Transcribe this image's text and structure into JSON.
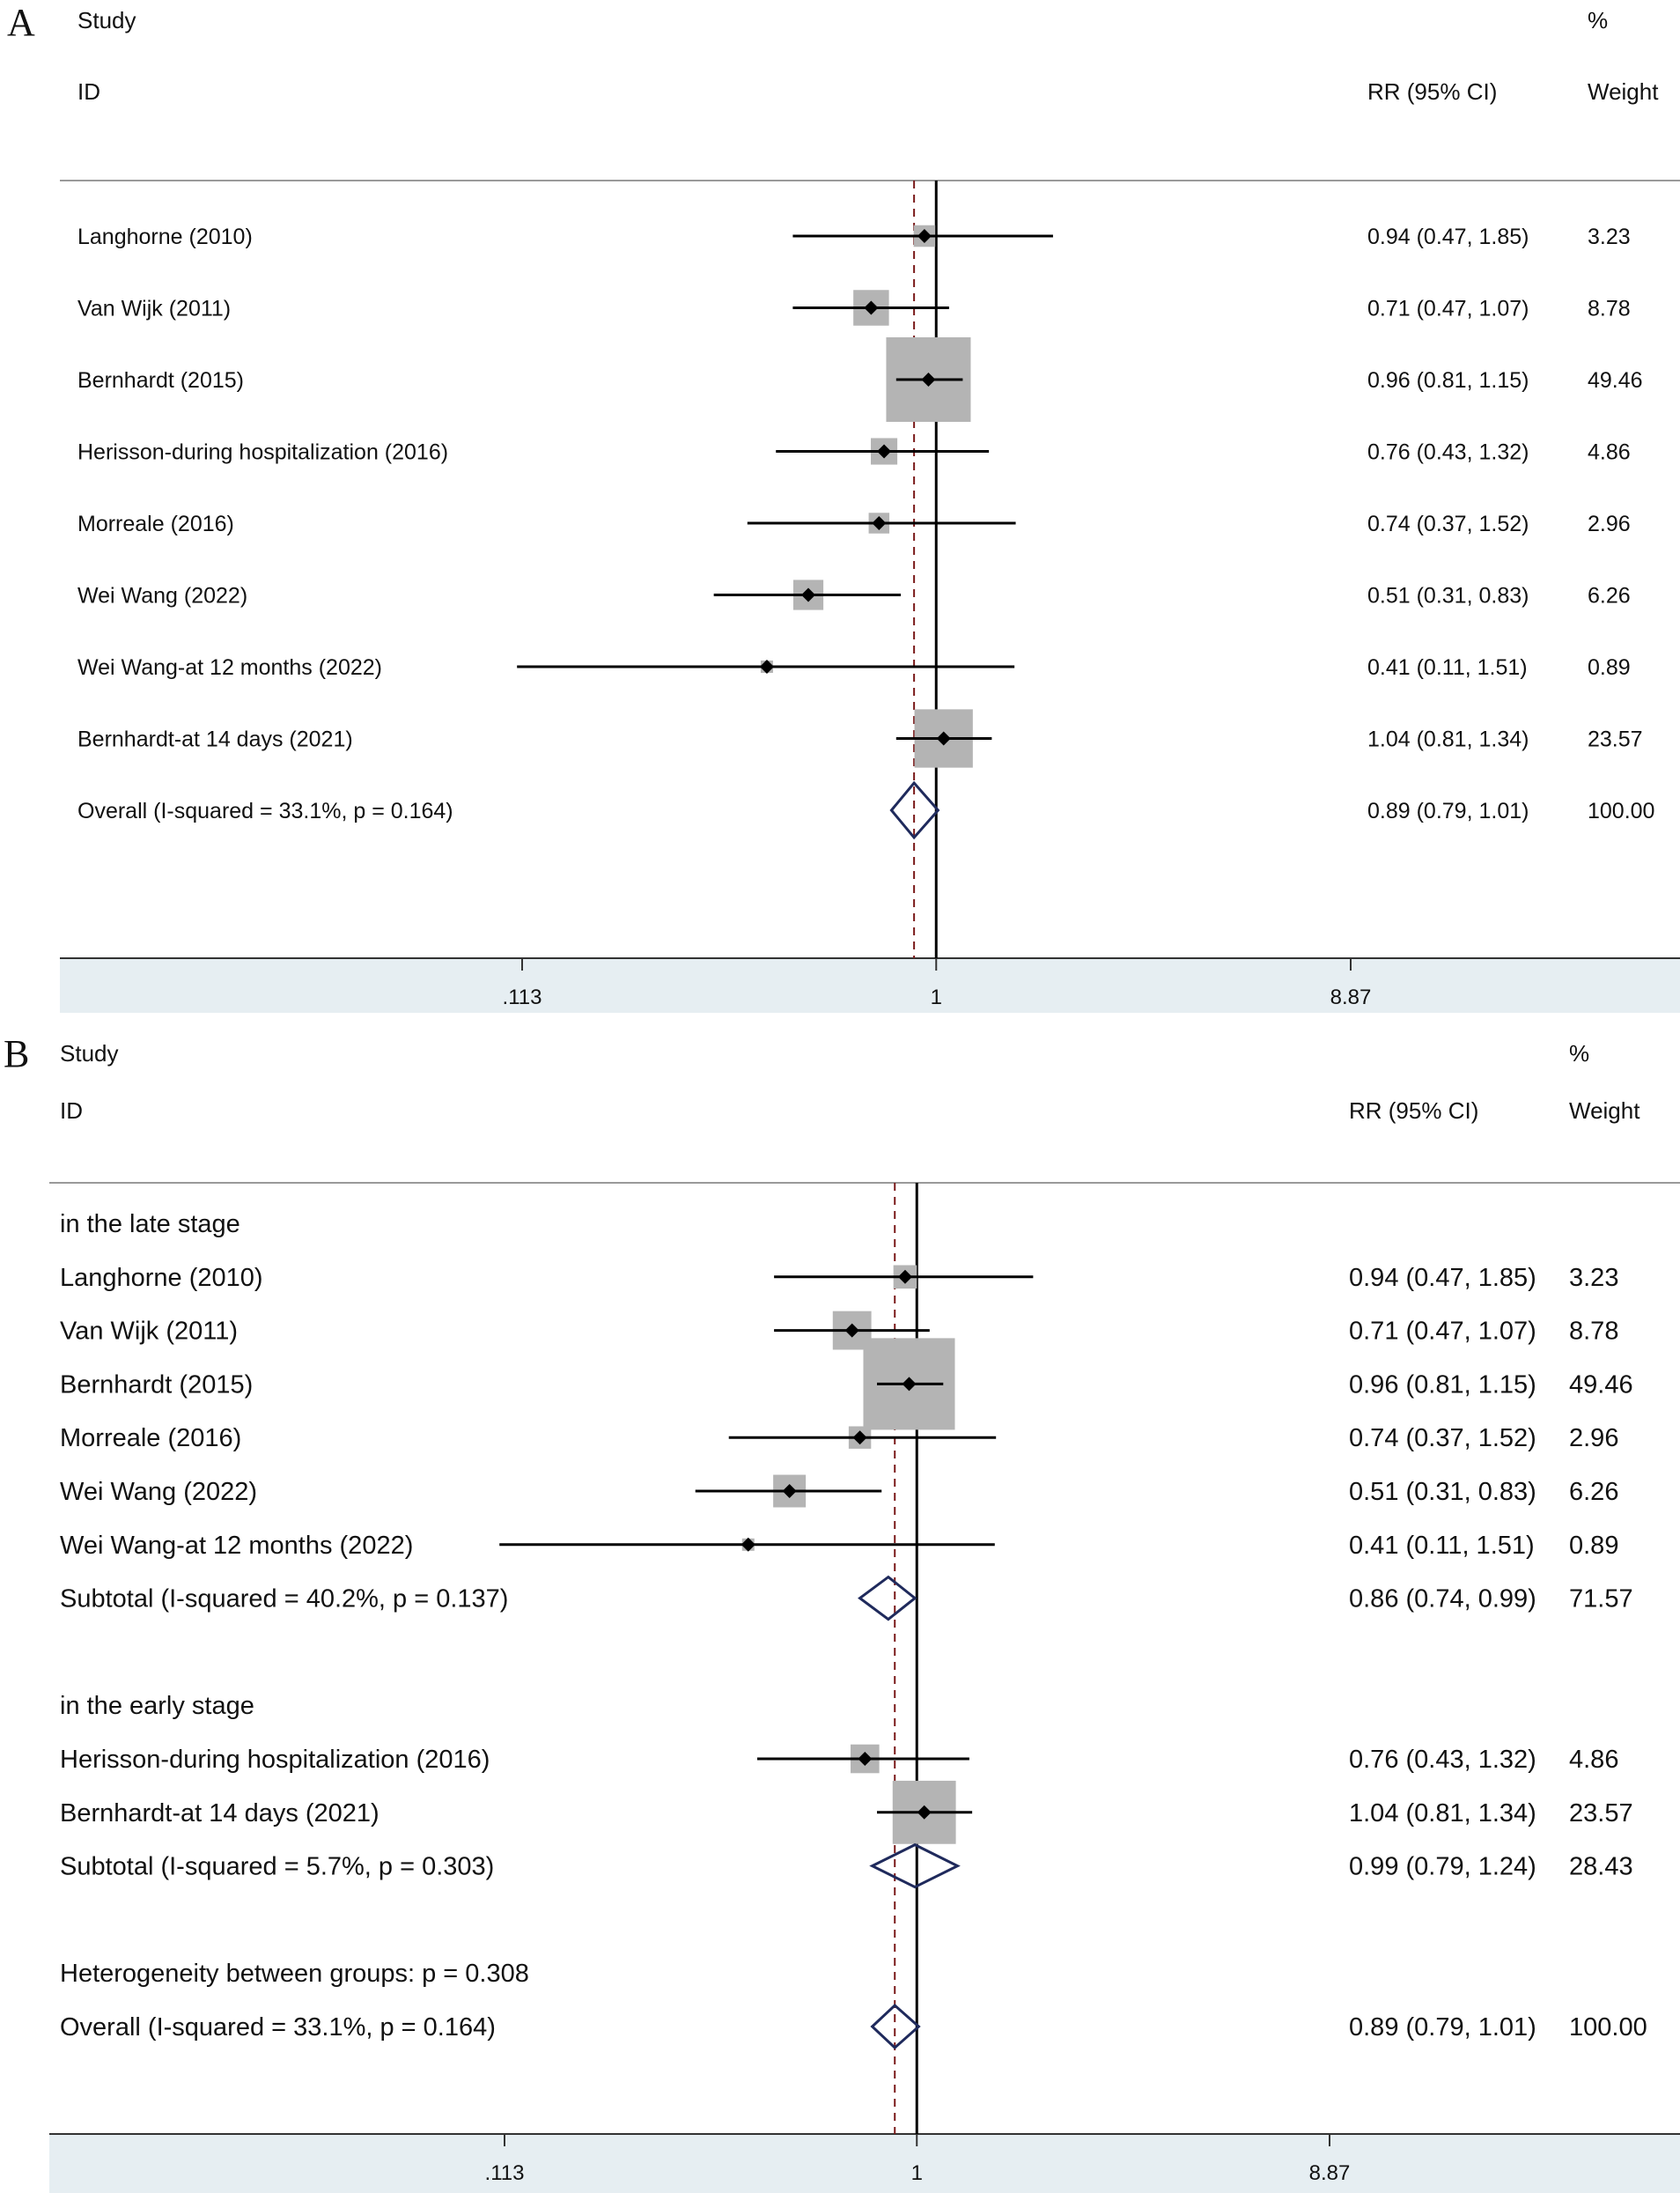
{
  "colors": {
    "box": "#b4b4b4",
    "diamond": "#1f2a5c",
    "refline": "#7a1a1a",
    "axis_band": "#e6eef2",
    "line": "#000000"
  },
  "chart_data": [
    {
      "type": "forest",
      "panel_label": "A",
      "header": {
        "study": "Study",
        "id": "ID",
        "effect": "RR (95% CI)",
        "pct": "%",
        "weight": "Weight"
      },
      "scale": "log",
      "xlim": [
        0.113,
        8.87
      ],
      "ticks": [
        ".113",
        "1",
        "8.87"
      ],
      "tick_values": [
        0.113,
        1,
        8.87
      ],
      "null_value": 1,
      "overall_reference": 0.89,
      "rows": [
        {
          "kind": "study",
          "label": "Langhorne (2010)",
          "rr": 0.94,
          "lo": 0.47,
          "hi": 1.85,
          "ci_text": "0.94 (0.47, 1.85)",
          "weight": 3.23,
          "weight_text": "3.23"
        },
        {
          "kind": "study",
          "label": "Van Wijk (2011)",
          "rr": 0.71,
          "lo": 0.47,
          "hi": 1.07,
          "ci_text": "0.71 (0.47, 1.07)",
          "weight": 8.78,
          "weight_text": "8.78"
        },
        {
          "kind": "study",
          "label": "Bernhardt (2015)",
          "rr": 0.96,
          "lo": 0.81,
          "hi": 1.15,
          "ci_text": "0.96 (0.81, 1.15)",
          "weight": 49.46,
          "weight_text": "49.46"
        },
        {
          "kind": "study",
          "label": "Herisson-during hospitalization (2016)",
          "rr": 0.76,
          "lo": 0.43,
          "hi": 1.32,
          "ci_text": "0.76 (0.43, 1.32)",
          "weight": 4.86,
          "weight_text": "4.86"
        },
        {
          "kind": "study",
          "label": "Morreale (2016)",
          "rr": 0.74,
          "lo": 0.37,
          "hi": 1.52,
          "ci_text": "0.74 (0.37, 1.52)",
          "weight": 2.96,
          "weight_text": "2.96"
        },
        {
          "kind": "study",
          "label": "Wei Wang (2022)",
          "rr": 0.51,
          "lo": 0.31,
          "hi": 0.83,
          "ci_text": "0.51 (0.31, 0.83)",
          "weight": 6.26,
          "weight_text": "6.26"
        },
        {
          "kind": "study",
          "label": "Wei Wang-at 12 months (2022)",
          "rr": 0.41,
          "lo": 0.11,
          "hi": 1.51,
          "ci_text": "0.41 (0.11, 1.51)",
          "weight": 0.89,
          "weight_text": "0.89"
        },
        {
          "kind": "study",
          "label": "Bernhardt-at 14 days (2021)",
          "rr": 1.04,
          "lo": 0.81,
          "hi": 1.34,
          "ci_text": "1.04 (0.81, 1.34)",
          "weight": 23.57,
          "weight_text": "23.57"
        },
        {
          "kind": "overall",
          "label": "Overall  (I-squared = 33.1%, p = 0.164)",
          "rr": 0.89,
          "lo": 0.79,
          "hi": 1.01,
          "ci_text": "0.89 (0.79, 1.01)",
          "weight": 100.0,
          "weight_text": "100.00"
        }
      ]
    },
    {
      "type": "forest",
      "panel_label": "B",
      "header": {
        "study": "Study",
        "id": "ID",
        "effect": "RR (95% CI)",
        "pct": "%",
        "weight": "Weight"
      },
      "scale": "log",
      "xlim": [
        0.113,
        8.87
      ],
      "ticks": [
        ".113",
        "1",
        "8.87"
      ],
      "tick_values": [
        0.113,
        1,
        8.87
      ],
      "null_value": 1,
      "overall_reference": 0.89,
      "rows": [
        {
          "kind": "group",
          "label": "in the late stage"
        },
        {
          "kind": "study",
          "label": "Langhorne (2010)",
          "rr": 0.94,
          "lo": 0.47,
          "hi": 1.85,
          "ci_text": "0.94 (0.47, 1.85)",
          "weight": 3.23,
          "weight_text": "3.23"
        },
        {
          "kind": "study",
          "label": "Van Wijk (2011)",
          "rr": 0.71,
          "lo": 0.47,
          "hi": 1.07,
          "ci_text": "0.71 (0.47, 1.07)",
          "weight": 8.78,
          "weight_text": "8.78"
        },
        {
          "kind": "study",
          "label": "Bernhardt (2015)",
          "rr": 0.96,
          "lo": 0.81,
          "hi": 1.15,
          "ci_text": "0.96 (0.81, 1.15)",
          "weight": 49.46,
          "weight_text": "49.46"
        },
        {
          "kind": "study",
          "label": "Morreale (2016)",
          "rr": 0.74,
          "lo": 0.37,
          "hi": 1.52,
          "ci_text": "0.74 (0.37, 1.52)",
          "weight": 2.96,
          "weight_text": "2.96"
        },
        {
          "kind": "study",
          "label": "Wei Wang (2022)",
          "rr": 0.51,
          "lo": 0.31,
          "hi": 0.83,
          "ci_text": "0.51 (0.31, 0.83)",
          "weight": 6.26,
          "weight_text": "6.26"
        },
        {
          "kind": "study",
          "label": "Wei Wang-at 12 months (2022)",
          "rr": 0.41,
          "lo": 0.11,
          "hi": 1.51,
          "ci_text": "0.41 (0.11, 1.51)",
          "weight": 0.89,
          "weight_text": "0.89"
        },
        {
          "kind": "subtotal",
          "label": "Subtotal  (I-squared = 40.2%, p = 0.137)",
          "rr": 0.86,
          "lo": 0.74,
          "hi": 0.99,
          "ci_text": "0.86 (0.74, 0.99)",
          "weight": 71.57,
          "weight_text": "71.57"
        },
        {
          "kind": "spacer"
        },
        {
          "kind": "group",
          "label": "in the early stage"
        },
        {
          "kind": "study",
          "label": "Herisson-during hospitalization (2016)",
          "rr": 0.76,
          "lo": 0.43,
          "hi": 1.32,
          "ci_text": "0.76 (0.43, 1.32)",
          "weight": 4.86,
          "weight_text": "4.86"
        },
        {
          "kind": "study",
          "label": "Bernhardt-at 14 days (2021)",
          "rr": 1.04,
          "lo": 0.81,
          "hi": 1.34,
          "ci_text": "1.04 (0.81, 1.34)",
          "weight": 23.57,
          "weight_text": "23.57"
        },
        {
          "kind": "subtotal",
          "label": "Subtotal  (I-squared = 5.7%, p = 0.303)",
          "rr": 0.99,
          "lo": 0.79,
          "hi": 1.24,
          "ci_text": "0.99 (0.79, 1.24)",
          "weight": 28.43,
          "weight_text": "28.43"
        },
        {
          "kind": "spacer"
        },
        {
          "kind": "note",
          "label": "Heterogeneity between groups: p = 0.308"
        },
        {
          "kind": "overall",
          "label": "Overall  (I-squared = 33.1%, p = 0.164)",
          "rr": 0.89,
          "lo": 0.79,
          "hi": 1.01,
          "ci_text": "0.89 (0.79, 1.01)",
          "weight": 100.0,
          "weight_text": "100.00"
        }
      ]
    }
  ]
}
